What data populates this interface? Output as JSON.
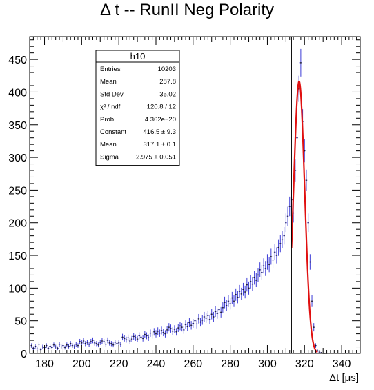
{
  "chart_data": {
    "type": "scatter",
    "title": "Δ t -- RunII Neg Polarity",
    "xlabel": "Δt [μs]",
    "ylabel": "",
    "xlim": [
      172,
      350
    ],
    "ylim": [
      0,
      485
    ],
    "x_ticks": [
      180,
      200,
      220,
      240,
      260,
      280,
      300,
      320,
      340
    ],
    "y_ticks": [
      0,
      50,
      100,
      150,
      200,
      250,
      300,
      350,
      400,
      450
    ],
    "grid": false,
    "histogram": {
      "name": "h10",
      "color": "#3b3bd6",
      "points": [
        [
          173,
          12
        ],
        [
          174,
          8
        ],
        [
          175,
          11
        ],
        [
          176,
          7
        ],
        [
          177,
          14
        ],
        [
          178,
          6
        ],
        [
          179,
          10
        ],
        [
          180,
          9
        ],
        [
          181,
          12
        ],
        [
          182,
          8
        ],
        [
          183,
          11
        ],
        [
          184,
          9
        ],
        [
          185,
          13
        ],
        [
          186,
          10
        ],
        [
          187,
          8
        ],
        [
          188,
          14
        ],
        [
          189,
          10
        ],
        [
          190,
          12
        ],
        [
          191,
          9
        ],
        [
          192,
          13
        ],
        [
          193,
          11
        ],
        [
          194,
          15
        ],
        [
          195,
          12
        ],
        [
          196,
          10
        ],
        [
          197,
          14
        ],
        [
          198,
          12
        ],
        [
          199,
          18
        ],
        [
          200,
          16
        ],
        [
          201,
          19
        ],
        [
          202,
          15
        ],
        [
          203,
          17
        ],
        [
          204,
          14
        ],
        [
          205,
          18
        ],
        [
          206,
          20
        ],
        [
          207,
          16
        ],
        [
          208,
          15
        ],
        [
          209,
          13
        ],
        [
          210,
          17
        ],
        [
          211,
          19
        ],
        [
          212,
          18
        ],
        [
          213,
          14
        ],
        [
          214,
          20
        ],
        [
          215,
          16
        ],
        [
          216,
          15
        ],
        [
          217,
          13
        ],
        [
          218,
          17
        ],
        [
          219,
          15
        ],
        [
          220,
          16
        ],
        [
          221,
          14
        ],
        [
          222,
          25
        ],
        [
          223,
          23
        ],
        [
          224,
          21
        ],
        [
          225,
          24
        ],
        [
          226,
          19
        ],
        [
          227,
          22
        ],
        [
          228,
          26
        ],
        [
          229,
          24
        ],
        [
          230,
          22
        ],
        [
          231,
          27
        ],
        [
          232,
          25
        ],
        [
          233,
          23
        ],
        [
          234,
          29
        ],
        [
          235,
          27
        ],
        [
          236,
          24
        ],
        [
          237,
          31
        ],
        [
          238,
          28
        ],
        [
          239,
          33
        ],
        [
          240,
          30
        ],
        [
          241,
          34
        ],
        [
          242,
          31
        ],
        [
          243,
          35
        ],
        [
          244,
          32
        ],
        [
          245,
          30
        ],
        [
          246,
          36
        ],
        [
          247,
          40
        ],
        [
          248,
          38
        ],
        [
          249,
          34
        ],
        [
          250,
          37
        ],
        [
          251,
          33
        ],
        [
          252,
          39
        ],
        [
          253,
          42
        ],
        [
          254,
          40
        ],
        [
          255,
          36
        ],
        [
          256,
          44
        ],
        [
          257,
          41
        ],
        [
          258,
          47
        ],
        [
          259,
          43
        ],
        [
          260,
          46
        ],
        [
          261,
          50
        ],
        [
          262,
          45
        ],
        [
          263,
          53
        ],
        [
          264,
          48
        ],
        [
          265,
          51
        ],
        [
          266,
          56
        ],
        [
          267,
          54
        ],
        [
          268,
          58
        ],
        [
          269,
          52
        ],
        [
          270,
          60
        ],
        [
          271,
          56
        ],
        [
          272,
          64
        ],
        [
          273,
          61
        ],
        [
          274,
          67
        ],
        [
          275,
          63
        ],
        [
          276,
          70
        ],
        [
          277,
          78
        ],
        [
          278,
          73
        ],
        [
          279,
          80
        ],
        [
          280,
          76
        ],
        [
          281,
          85
        ],
        [
          282,
          80
        ],
        [
          283,
          90
        ],
        [
          284,
          86
        ],
        [
          285,
          95
        ],
        [
          286,
          91
        ],
        [
          287,
          98
        ],
        [
          288,
          94
        ],
        [
          289,
          105
        ],
        [
          290,
          100
        ],
        [
          291,
          110
        ],
        [
          292,
          106
        ],
        [
          293,
          116
        ],
        [
          294,
          112
        ],
        [
          295,
          120
        ],
        [
          296,
          128
        ],
        [
          297,
          124
        ],
        [
          298,
          134
        ],
        [
          299,
          130
        ],
        [
          300,
          140
        ],
        [
          301,
          136
        ],
        [
          302,
          148
        ],
        [
          303,
          143
        ],
        [
          304,
          155
        ],
        [
          305,
          150
        ],
        [
          306,
          162
        ],
        [
          307,
          168
        ],
        [
          308,
          174
        ],
        [
          309,
          180
        ],
        [
          310,
          200
        ],
        [
          311,
          210
        ],
        [
          312,
          225
        ],
        [
          313,
          235
        ],
        [
          314,
          215
        ],
        [
          315,
          280
        ],
        [
          316,
          330
        ],
        [
          317,
          405
        ],
        [
          318,
          445
        ],
        [
          319,
          355
        ],
        [
          320,
          310
        ],
        [
          321,
          265
        ],
        [
          322,
          200
        ],
        [
          323,
          140
        ],
        [
          324,
          80
        ],
        [
          325,
          40
        ],
        [
          326,
          12
        ],
        [
          327,
          4
        ],
        [
          328,
          2
        ],
        [
          329,
          1
        ],
        [
          330,
          0
        ],
        [
          331,
          0
        ],
        [
          332,
          0
        ]
      ]
    },
    "fit": {
      "color": "#e01010",
      "x_range": [
        313,
        327
      ],
      "constant": 416.5,
      "mean": 317.1,
      "sigma": 2.975
    },
    "vertical_line_x": 313,
    "stats_box": {
      "title": "h10",
      "rows": [
        {
          "label": "Entries",
          "value": "10203"
        },
        {
          "label": "Mean",
          "value": "287.8"
        },
        {
          "label": "Std Dev",
          "value": "35.02"
        },
        {
          "label": "χ² / ndf",
          "value": "120.8 / 12"
        },
        {
          "label": "Prob",
          "value": "4.362e−20"
        },
        {
          "label": "Constant",
          "value": "416.5 ± 9.3"
        },
        {
          "label": "Mean",
          "value": "317.1 ± 0.1"
        },
        {
          "label": "Sigma",
          "value": "2.975 ± 0.051"
        }
      ]
    }
  }
}
